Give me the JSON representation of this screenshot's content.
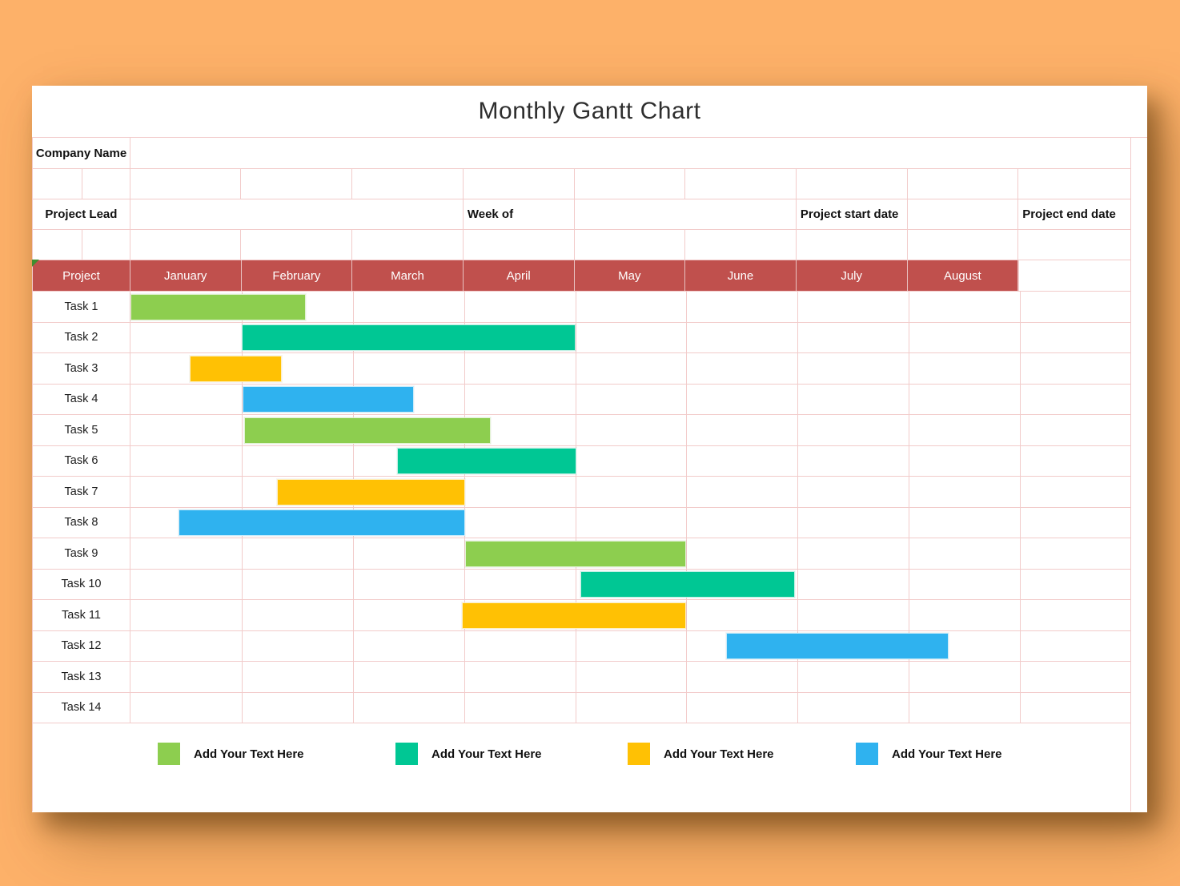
{
  "title": "Monthly Gantt Chart",
  "info": {
    "company_name_label": "Company Name",
    "project_lead_label": "Project Lead",
    "week_of_label": "Week of",
    "project_start_label": "Project start date",
    "project_end_label": "Project end date"
  },
  "chart_data": {
    "type": "gantt",
    "title": "Monthly Gantt Chart",
    "project_column_header": "Project",
    "months": [
      "January",
      "February",
      "March",
      "April",
      "May",
      "June",
      "July",
      "August"
    ],
    "tasks": [
      "Task 1",
      "Task 2",
      "Task 3",
      "Task 4",
      "Task 5",
      "Task 6",
      "Task 7",
      "Task 8",
      "Task 9",
      "Task 10",
      "Task 11",
      "Task 12",
      "Task 13",
      "Task 14"
    ],
    "month_unit_note": "0 = start of January, 1 = start of February",
    "bars": [
      {
        "task": "Task 1",
        "start_month": 0.0,
        "end_month": 1.58,
        "color": "green"
      },
      {
        "task": "Task 2",
        "start_month": 1.0,
        "end_month": 4.0,
        "color": "teal"
      },
      {
        "task": "Task 3",
        "start_month": 0.53,
        "end_month": 1.36,
        "color": "yellow"
      },
      {
        "task": "Task 4",
        "start_month": 1.01,
        "end_month": 2.55,
        "color": "blue"
      },
      {
        "task": "Task 5",
        "start_month": 1.02,
        "end_month": 3.24,
        "color": "green"
      },
      {
        "task": "Task 6",
        "start_month": 2.4,
        "end_month": 4.01,
        "color": "teal"
      },
      {
        "task": "Task 7",
        "start_month": 1.32,
        "end_month": 3.01,
        "color": "yellow"
      },
      {
        "task": "Task 8",
        "start_month": 0.43,
        "end_month": 3.01,
        "color": "blue"
      },
      {
        "task": "Task 9",
        "start_month": 3.01,
        "end_month": 5.0,
        "color": "green"
      },
      {
        "task": "Task 10",
        "start_month": 4.05,
        "end_month": 5.98,
        "color": "teal"
      },
      {
        "task": "Task 11",
        "start_month": 2.98,
        "end_month": 5.0,
        "color": "yellow"
      },
      {
        "task": "Task 12",
        "start_month": 5.36,
        "end_month": 7.36,
        "color": "blue"
      }
    ]
  },
  "legend": {
    "items": [
      {
        "color": "green",
        "label": "Add Your Text Here"
      },
      {
        "color": "teal",
        "label": "Add Your Text Here"
      },
      {
        "color": "yellow",
        "label": "Add Your Text Here"
      },
      {
        "color": "blue",
        "label": "Add Your Text Here"
      }
    ]
  },
  "colors": {
    "green": "#8DCE4F",
    "teal": "#00C794",
    "yellow": "#FFC104",
    "blue": "#2FB2EF",
    "header": "#C0504D",
    "grid": "#F2CBCA",
    "background": "#FDB169",
    "corner_marker": "#3E8E2F"
  }
}
